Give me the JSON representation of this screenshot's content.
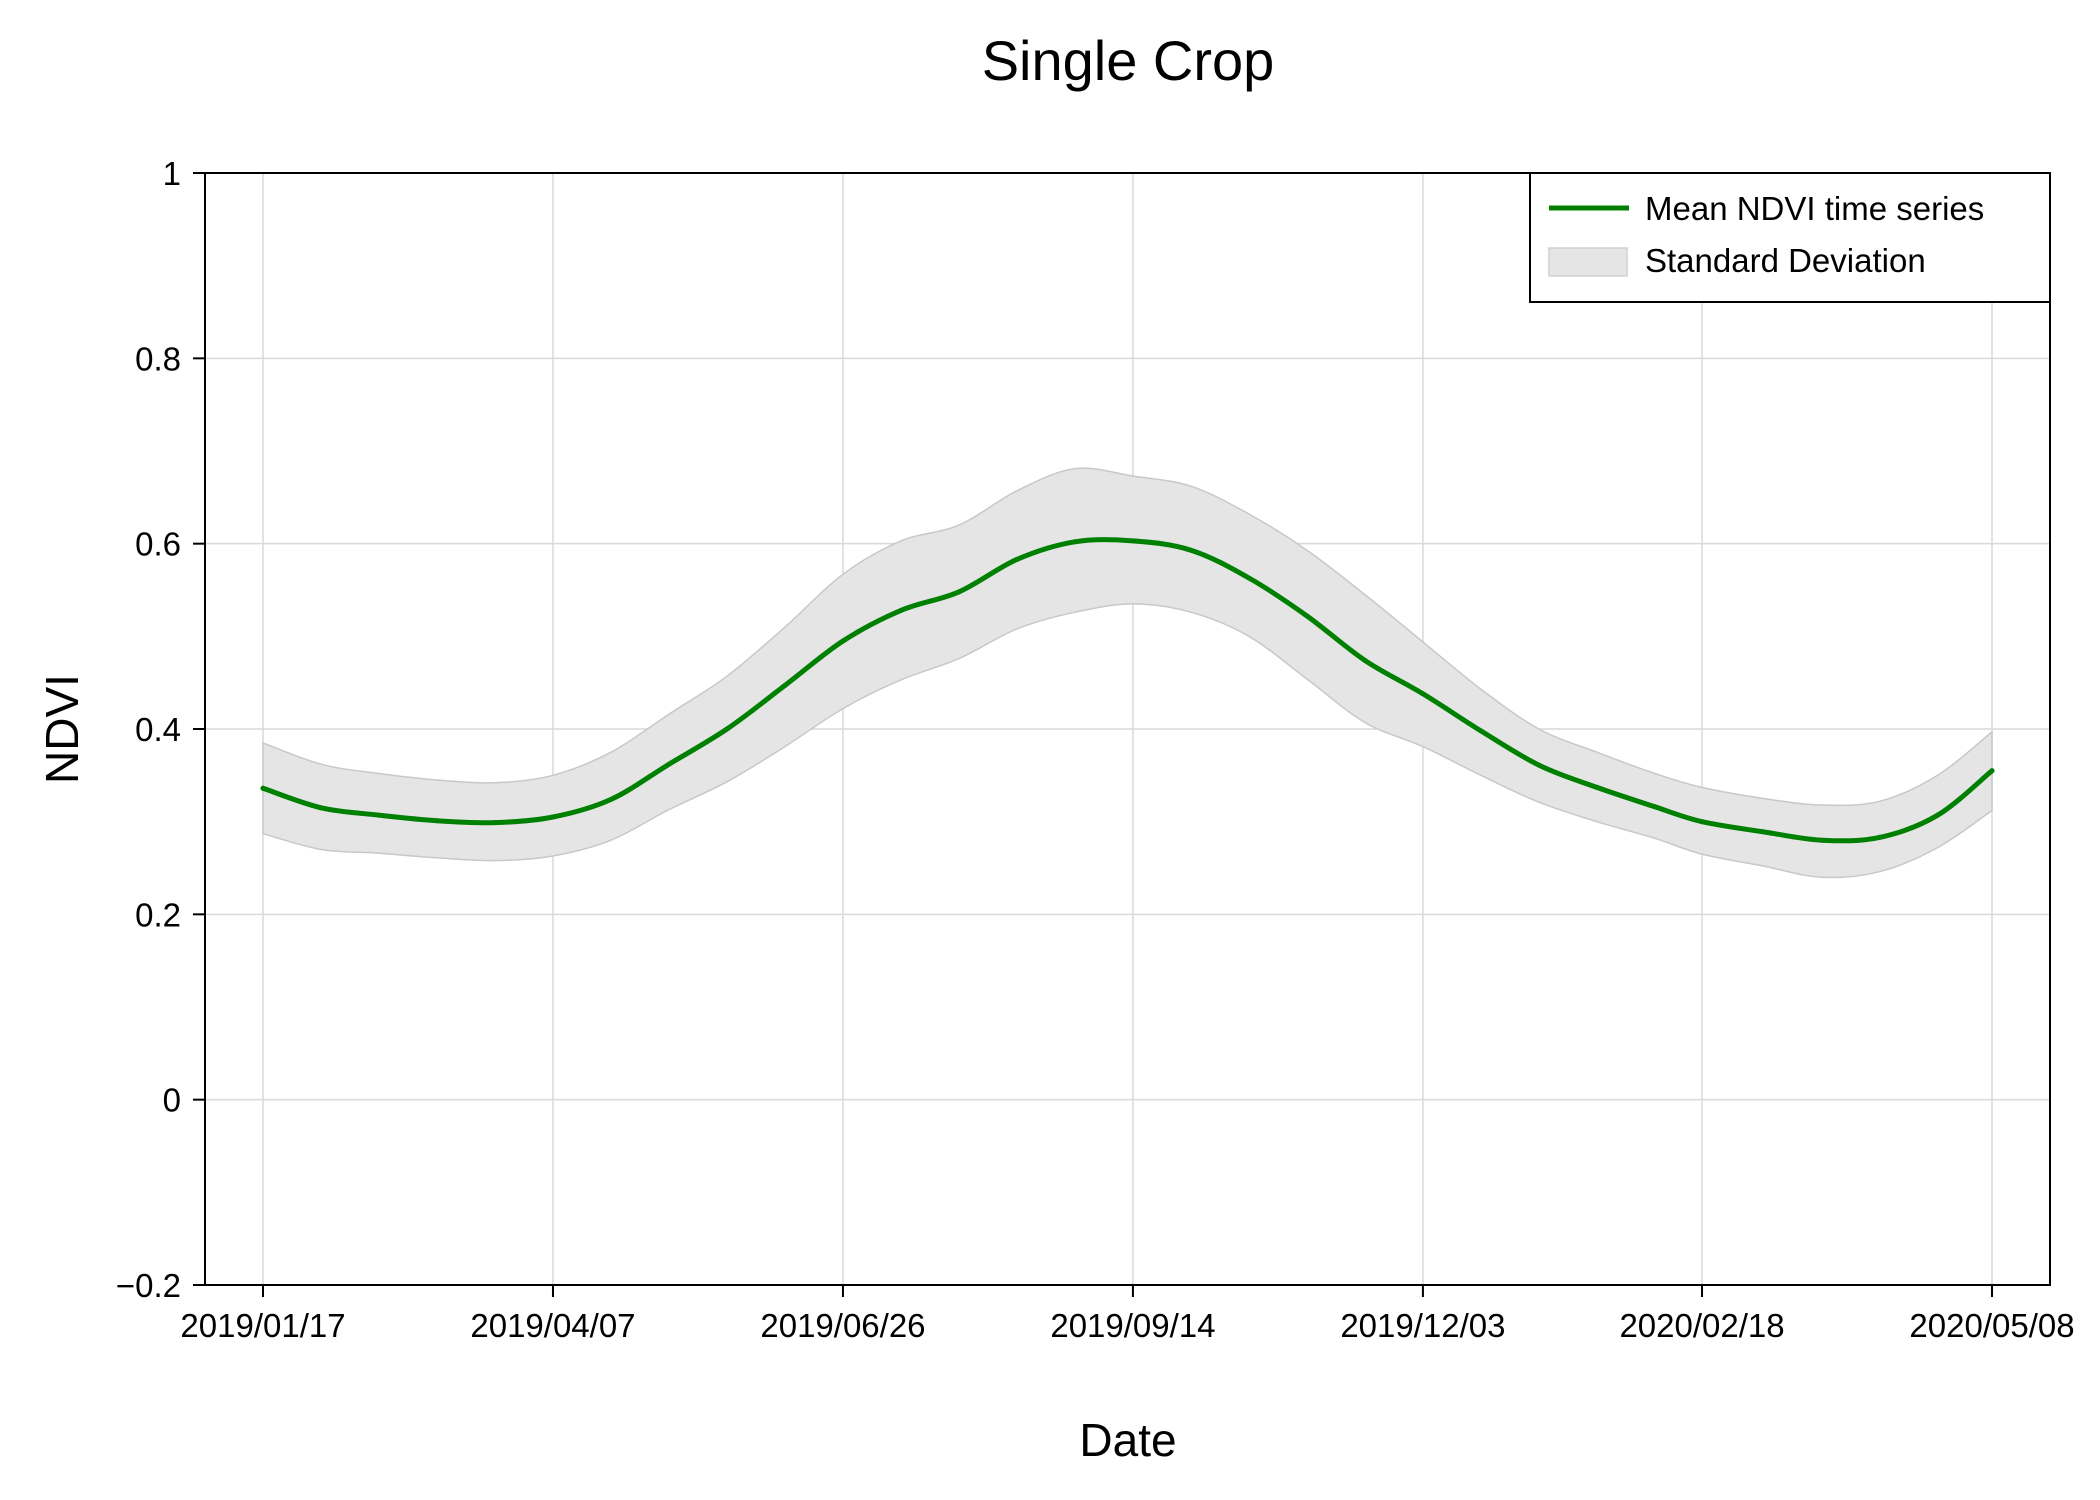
{
  "chart_data": {
    "type": "line",
    "title": "Single Crop",
    "xlabel": "Date",
    "ylabel": "NDVI",
    "ylim": [
      -0.2,
      1.0
    ],
    "xlim": [
      "2019-01-01",
      "2020-05-24"
    ],
    "grid": true,
    "legend_position": "top-right",
    "x_ticks": [
      "2019/01/17",
      "2019/04/07",
      "2019/06/26",
      "2019/09/14",
      "2019/12/03",
      "2020/02/18",
      "2020/05/08"
    ],
    "y_ticks": [
      {
        "value": -0.2,
        "label": "−0.2"
      },
      {
        "value": 0,
        "label": "0"
      },
      {
        "value": 0.2,
        "label": "0.2"
      },
      {
        "value": 0.4,
        "label": "0.4"
      },
      {
        "value": 0.6,
        "label": "0.6"
      },
      {
        "value": 0.8,
        "label": "0.8"
      },
      {
        "value": 1.0,
        "label": "1"
      }
    ],
    "x": [
      "2019-01-17",
      "2019-02-02",
      "2019-02-18",
      "2019-03-06",
      "2019-03-22",
      "2019-04-07",
      "2019-04-23",
      "2019-05-09",
      "2019-05-25",
      "2019-06-10",
      "2019-06-26",
      "2019-07-12",
      "2019-07-28",
      "2019-08-13",
      "2019-08-29",
      "2019-09-14",
      "2019-09-30",
      "2019-10-16",
      "2019-11-01",
      "2019-11-17",
      "2019-12-03",
      "2019-12-19",
      "2020-01-04",
      "2020-01-20",
      "2020-02-05",
      "2020-02-18",
      "2020-03-06",
      "2020-03-22",
      "2020-04-07",
      "2020-04-23",
      "2020-05-08"
    ],
    "series": [
      {
        "name": "Mean NDVI time series",
        "color": "#008000",
        "values": [
          0.336,
          0.315,
          0.307,
          0.301,
          0.299,
          0.305,
          0.324,
          0.362,
          0.4,
          0.447,
          0.495,
          0.528,
          0.548,
          0.583,
          0.602,
          0.603,
          0.593,
          0.563,
          0.522,
          0.474,
          0.438,
          0.398,
          0.361,
          0.337,
          0.316,
          0.3,
          0.289,
          0.28,
          0.283,
          0.307,
          0.355
        ]
      }
    ],
    "band": {
      "name": "Standard Deviation",
      "color": "#e5e5e5",
      "upper": [
        0.385,
        0.362,
        0.352,
        0.345,
        0.342,
        0.35,
        0.375,
        0.416,
        0.457,
        0.51,
        0.567,
        0.603,
        0.62,
        0.657,
        0.681,
        0.673,
        0.662,
        0.632,
        0.593,
        0.545,
        0.494,
        0.443,
        0.4,
        0.375,
        0.352,
        0.337,
        0.325,
        0.318,
        0.322,
        0.35,
        0.397
      ],
      "lower": [
        0.287,
        0.27,
        0.266,
        0.261,
        0.258,
        0.263,
        0.28,
        0.313,
        0.343,
        0.381,
        0.422,
        0.453,
        0.476,
        0.508,
        0.526,
        0.535,
        0.526,
        0.5,
        0.454,
        0.407,
        0.381,
        0.35,
        0.321,
        0.3,
        0.282,
        0.265,
        0.252,
        0.24,
        0.246,
        0.272,
        0.312
      ]
    }
  }
}
